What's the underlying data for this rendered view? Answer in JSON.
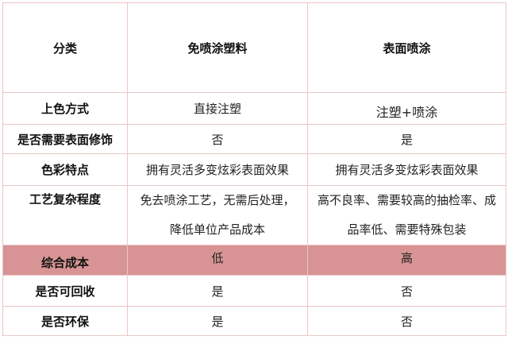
{
  "colors": {
    "highlight_row": "#d89494",
    "border": "#ecc6c6"
  },
  "header": [
    "分类",
    "免喷涂塑料",
    "表面喷涂"
  ],
  "rows": [
    {
      "label": "上色方式",
      "a": "直接注塑",
      "b": "注塑+喷涂"
    },
    {
      "label": "是否需要表面修饰",
      "a": "否",
      "b": "是"
    },
    {
      "label": "色彩特点",
      "a": "拥有灵活多变炫彩表面效果",
      "b": "拥有灵活多变炫彩表面效果"
    },
    {
      "label": "工艺复杂程度",
      "a": "免去喷涂工艺，无需后处理，降低单位产品成本",
      "b": "高不良率、需要较高的抽检率、成品率低、需要特殊包装"
    },
    {
      "label": "综合成本",
      "a": "低",
      "b": "高",
      "highlighted": true
    },
    {
      "label": "是否可回收",
      "a": "是",
      "b": "否"
    },
    {
      "label": "是否环保",
      "a": "是",
      "b": "否"
    }
  ]
}
